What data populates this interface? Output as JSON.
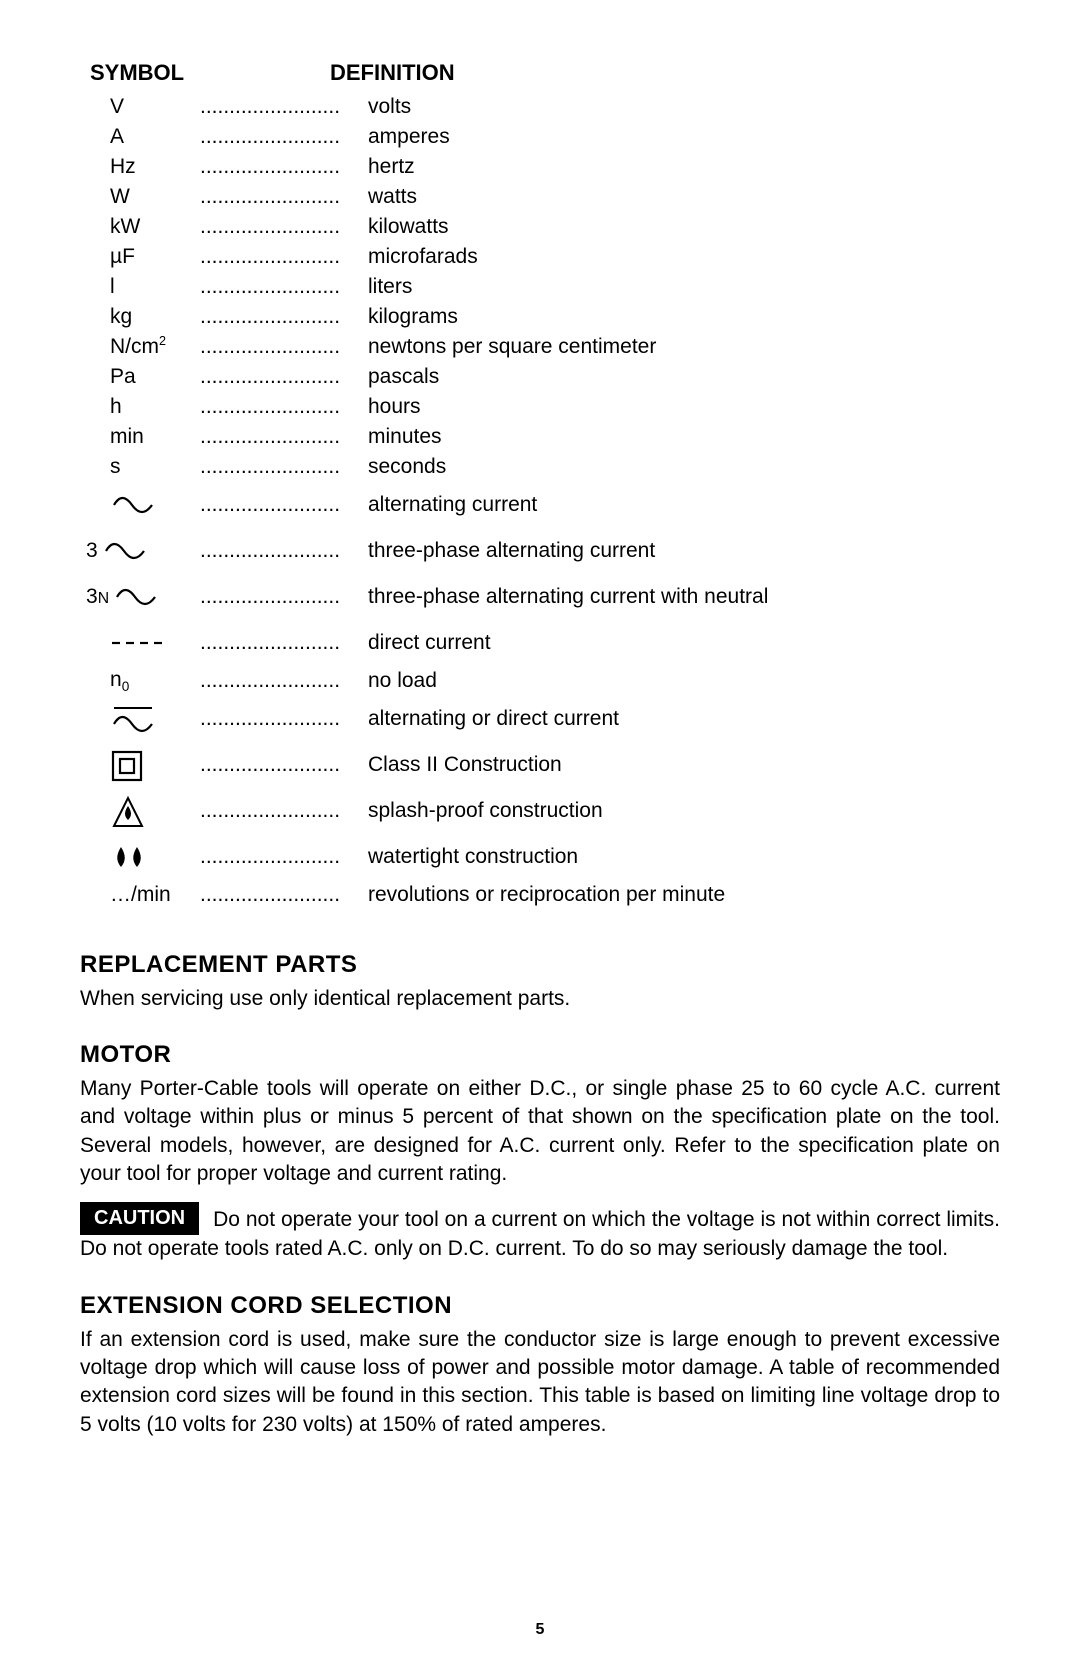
{
  "table": {
    "header_symbol": "SYMBOL",
    "header_definition": "DEFINITION",
    "dots": "........................",
    "rows": [
      {
        "sym_text": "V",
        "def": "volts"
      },
      {
        "sym_text": "A",
        "def": "amperes"
      },
      {
        "sym_text": "Hz",
        "def": "hertz"
      },
      {
        "sym_text": "W",
        "def": "watts"
      },
      {
        "sym_text": "kW",
        "def": "kilowatts"
      },
      {
        "sym_text": "µF",
        "def": "microfarads"
      },
      {
        "sym_text": "l",
        "def": "liters"
      },
      {
        "sym_text": "kg",
        "def": "kilograms"
      },
      {
        "sym_html": "N/cm<span class='sup'>2</span>",
        "def": "newtons per square centimeter"
      },
      {
        "sym_text": "Pa",
        "def": "pascals"
      },
      {
        "sym_text": "h",
        "def": "hours"
      },
      {
        "sym_text": "min",
        "def": "minutes"
      },
      {
        "sym_text": "s",
        "def": "seconds"
      },
      {
        "icon": "ac",
        "def": "alternating current",
        "tall": true
      },
      {
        "prefix": "3",
        "icon": "ac",
        "def": "three-phase alternating current",
        "tall": true
      },
      {
        "prefix_html": "3<span class='smallcap'>N</span>",
        "icon": "ac",
        "def": "three-phase alternating current with neutral",
        "tall": true
      },
      {
        "icon": "dc",
        "def": "direct current",
        "tall": true
      },
      {
        "sym_html": "n<span class='sub'>0</span>",
        "def": "no load"
      },
      {
        "icon": "acdc",
        "def": "alternating or direct current",
        "tall": true
      },
      {
        "icon": "class2",
        "def": "Class II Construction",
        "tall": true
      },
      {
        "icon": "splash",
        "def": "splash-proof construction",
        "tall": true
      },
      {
        "icon": "watertight",
        "def": "watertight construction",
        "tall": true
      },
      {
        "sym_text": "…/min",
        "def": "revolutions or reciprocation per minute"
      }
    ]
  },
  "sections": {
    "replacement": {
      "heading": "REPLACEMENT PARTS",
      "text": "When servicing use only identical replacement parts."
    },
    "motor": {
      "heading": "MOTOR",
      "text": "Many Porter-Cable tools will operate on either D.C., or single phase 25 to 60 cycle A.C. current and voltage within plus or minus 5 percent of that shown on the specification plate on the tool. Several models, however, are designed for A.C. current only. Refer to the specification plate on your tool for proper voltage and current rating.",
      "caution_label": "CAUTION",
      "caution_text": "Do not operate your tool on a current on which the voltage is not within correct limits. Do not operate tools rated A.C. only on D.C. current. To do so may seriously damage the tool."
    },
    "extension": {
      "heading": "EXTENSION CORD SELECTION",
      "text": "If an extension cord is used, make sure the conductor size is large enough to prevent excessive voltage drop which will cause loss of power and possible motor damage. A table of recommended extension cord sizes will be found in this section. This table is based on limiting line voltage drop to 5 volts (10 volts for 230 volts) at 150% of rated amperes."
    }
  },
  "page_number": "5",
  "icons": {
    "stroke": "#000000",
    "fill": "#000000"
  }
}
